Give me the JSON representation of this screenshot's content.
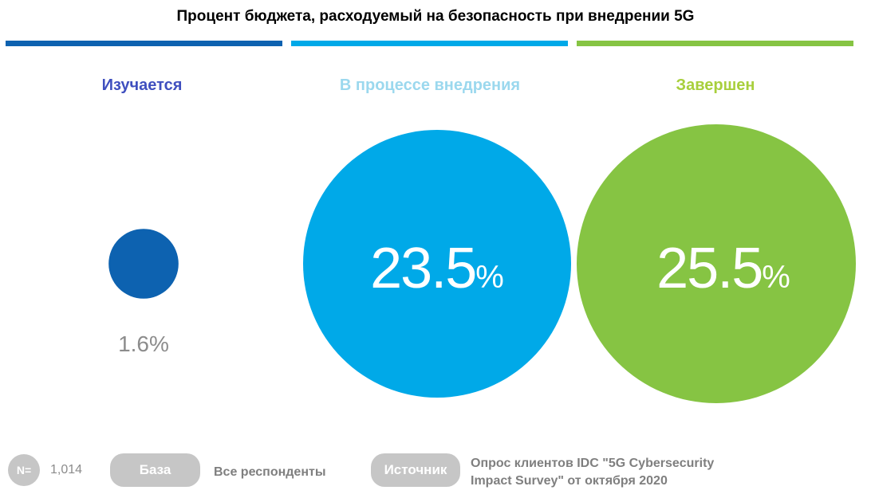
{
  "title": "Процент бюджета, расходуемый на безопасность при внедрении 5G",
  "colors": {
    "dark_blue": "#0d62b0",
    "light_blue": "#00a9e8",
    "green": "#86c443",
    "gray_pill": "#c6c6c6",
    "text_gray": "#7f7f7f"
  },
  "chart_data": {
    "type": "bubble",
    "title": "Процент бюджета, расходуемый на безопасность при внедрении 5G",
    "categories": [
      "Изучается",
      "В процессе внедрения",
      "Завершен"
    ],
    "values": [
      1.6,
      23.5,
      25.5
    ],
    "value_labels": [
      "1.6%",
      "23.5",
      "25.5"
    ],
    "unit": "%",
    "series_colors": [
      "#0d62b0",
      "#00a9e8",
      "#86c443"
    ]
  },
  "footer": {
    "n_label": "N=",
    "n_value": "1,014",
    "base_label": "База",
    "base_value": "Все респонденты",
    "source_label": "Источник",
    "source_line1": "Опрос клиентов IDC \"5G Cybersecurity",
    "source_line2": "Impact Survey\" от октября 2020"
  }
}
